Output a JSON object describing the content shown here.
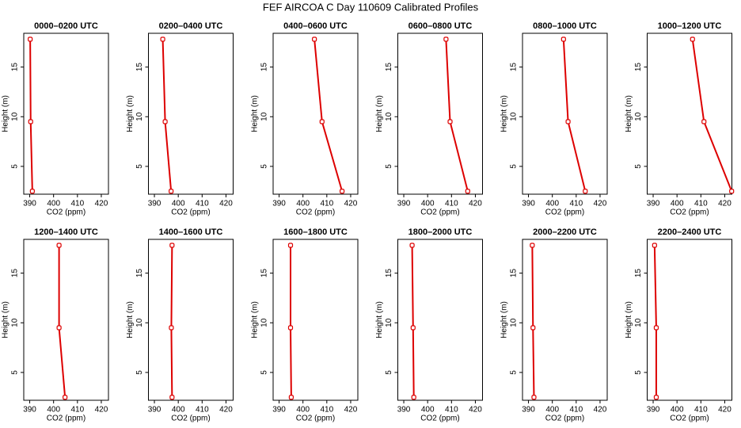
{
  "title": "FEF AIRCOA C  Day 110609  Calibrated Profiles",
  "chart_data": [
    {
      "type": "line",
      "title": "0000–0200 UTC",
      "xlabel": "CO2 (ppm)",
      "ylabel": "Height (m)",
      "color": "#dd0000",
      "x": [
        390.2,
        390.4,
        391.1
      ],
      "values": [
        17.8,
        9.5,
        2.5
      ],
      "xlim": [
        387.5,
        423
      ],
      "ylim": [
        2.2,
        18.4
      ],
      "xticks": [
        390,
        400,
        410,
        420
      ],
      "yticks": [
        5,
        10,
        15
      ]
    },
    {
      "type": "line",
      "title": "0200–0400 UTC",
      "xlabel": "CO2 (ppm)",
      "ylabel": "Height (m)",
      "color": "#dd0000",
      "x": [
        393.5,
        394.5,
        397
      ],
      "values": [
        17.8,
        9.5,
        2.5
      ],
      "xlim": [
        387.5,
        423
      ],
      "ylim": [
        2.2,
        18.4
      ],
      "xticks": [
        390,
        400,
        410,
        420
      ],
      "yticks": [
        5,
        10,
        15
      ]
    },
    {
      "type": "line",
      "title": "0400–0600 UTC",
      "xlabel": "CO2 (ppm)",
      "ylabel": "Height (m)",
      "color": "#dd0000",
      "x": [
        404.8,
        408,
        416.4
      ],
      "values": [
        17.8,
        9.5,
        2.5
      ],
      "xlim": [
        387.5,
        423
      ],
      "ylim": [
        2.2,
        18.4
      ],
      "xticks": [
        390,
        400,
        410,
        420
      ],
      "yticks": [
        5,
        10,
        15
      ]
    },
    {
      "type": "line",
      "title": "0600–0800 UTC",
      "xlabel": "CO2 (ppm)",
      "ylabel": "Height (m)",
      "color": "#dd0000",
      "x": [
        407.7,
        409.4,
        416.8
      ],
      "values": [
        17.8,
        9.5,
        2.5
      ],
      "xlim": [
        387.5,
        423
      ],
      "ylim": [
        2.2,
        18.4
      ],
      "xticks": [
        390,
        400,
        410,
        420
      ],
      "yticks": [
        5,
        10,
        15
      ]
    },
    {
      "type": "line",
      "title": "0800–1000 UTC",
      "xlabel": "CO2 (ppm)",
      "ylabel": "Height (m)",
      "color": "#dd0000",
      "x": [
        404.7,
        406.6,
        413.8
      ],
      "values": [
        17.8,
        9.5,
        2.5
      ],
      "xlim": [
        387.5,
        423
      ],
      "ylim": [
        2.2,
        18.4
      ],
      "xticks": [
        390,
        400,
        410,
        420
      ],
      "yticks": [
        5,
        10,
        15
      ]
    },
    {
      "type": "line",
      "title": "1000–1200 UTC",
      "xlabel": "CO2 (ppm)",
      "ylabel": "Height (m)",
      "color": "#dd0000",
      "x": [
        406.5,
        411.3,
        422.9
      ],
      "values": [
        17.8,
        9.5,
        2.5
      ],
      "xlim": [
        387.5,
        423
      ],
      "ylim": [
        2.2,
        18.4
      ],
      "xticks": [
        390,
        400,
        410,
        420
      ],
      "yticks": [
        5,
        10,
        15
      ]
    },
    {
      "type": "line",
      "title": "1200–1400 UTC",
      "xlabel": "CO2 (ppm)",
      "ylabel": "Height (m)",
      "color": "#dd0000",
      "x": [
        402.3,
        402.3,
        404.8
      ],
      "values": [
        17.8,
        9.5,
        2.5
      ],
      "xlim": [
        387.5,
        423
      ],
      "ylim": [
        2.2,
        18.4
      ],
      "xticks": [
        390,
        400,
        410,
        420
      ],
      "yticks": [
        5,
        10,
        15
      ]
    },
    {
      "type": "line",
      "title": "1400–1600 UTC",
      "xlabel": "CO2 (ppm)",
      "ylabel": "Height (m)",
      "color": "#dd0000",
      "x": [
        397.4,
        397.1,
        397.4
      ],
      "values": [
        17.8,
        9.5,
        2.5
      ],
      "xlim": [
        387.5,
        423
      ],
      "ylim": [
        2.2,
        18.4
      ],
      "xticks": [
        390,
        400,
        410,
        420
      ],
      "yticks": [
        5,
        10,
        15
      ]
    },
    {
      "type": "line",
      "title": "1600–1800 UTC",
      "xlabel": "CO2 (ppm)",
      "ylabel": "Height (m)",
      "color": "#dd0000",
      "x": [
        394.8,
        394.8,
        395.1
      ],
      "values": [
        17.8,
        9.5,
        2.5
      ],
      "xlim": [
        387.5,
        423
      ],
      "ylim": [
        2.2,
        18.4
      ],
      "xticks": [
        390,
        400,
        410,
        420
      ],
      "yticks": [
        5,
        10,
        15
      ]
    },
    {
      "type": "line",
      "title": "1800–2000 UTC",
      "xlabel": "CO2 (ppm)",
      "ylabel": "Height (m)",
      "color": "#dd0000",
      "x": [
        393.5,
        393.9,
        394.2
      ],
      "values": [
        17.8,
        9.5,
        2.5
      ],
      "xlim": [
        387.5,
        423
      ],
      "ylim": [
        2.2,
        18.4
      ],
      "xticks": [
        390,
        400,
        410,
        420
      ],
      "yticks": [
        5,
        10,
        15
      ]
    },
    {
      "type": "line",
      "title": "2000–2200 UTC",
      "xlabel": "CO2 (ppm)",
      "ylabel": "Height (m)",
      "color": "#dd0000",
      "x": [
        391.6,
        391.9,
        392.3
      ],
      "values": [
        17.8,
        9.5,
        2.5
      ],
      "xlim": [
        387.5,
        423
      ],
      "ylim": [
        2.2,
        18.4
      ],
      "xticks": [
        390,
        400,
        410,
        420
      ],
      "yticks": [
        5,
        10,
        15
      ]
    },
    {
      "type": "line",
      "title": "2200–2400 UTC",
      "xlabel": "CO2 (ppm)",
      "ylabel": "Height (m)",
      "color": "#dd0000",
      "x": [
        390.6,
        391.3,
        391.3
      ],
      "values": [
        17.8,
        9.5,
        2.5
      ],
      "xlim": [
        387.5,
        423
      ],
      "ylim": [
        2.2,
        18.4
      ],
      "xticks": [
        390,
        400,
        410,
        420
      ],
      "yticks": [
        5,
        10,
        15
      ]
    }
  ]
}
